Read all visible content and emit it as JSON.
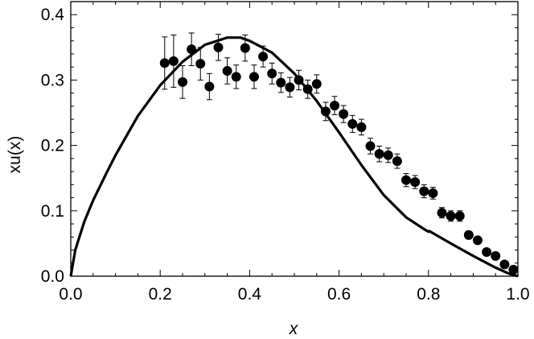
{
  "chart_data": {
    "type": "scatter",
    "xlabel": "x",
    "ylabel": "xu(x)",
    "xlim": [
      0,
      1
    ],
    "ylim": [
      0,
      0.42
    ],
    "x_ticks": [
      0.0,
      0.2,
      0.4,
      0.6,
      0.8,
      1.0
    ],
    "x_tick_labels": [
      "0.0",
      "0.2",
      "0.4",
      "0.6",
      "0.8",
      "1.0"
    ],
    "y_ticks": [
      0.0,
      0.1,
      0.2,
      0.3,
      0.4
    ],
    "y_tick_labels": [
      "0.0",
      "0.1",
      "0.2",
      "0.3",
      "0.4"
    ],
    "grid": false,
    "series": [
      {
        "kind": "line",
        "color": "#000000",
        "points": [
          [
            0.0,
            0.0
          ],
          [
            0.01,
            0.04
          ],
          [
            0.03,
            0.083
          ],
          [
            0.05,
            0.116
          ],
          [
            0.08,
            0.158
          ],
          [
            0.1,
            0.185
          ],
          [
            0.15,
            0.245
          ],
          [
            0.2,
            0.292
          ],
          [
            0.25,
            0.328
          ],
          [
            0.3,
            0.354
          ],
          [
            0.35,
            0.365
          ],
          [
            0.38,
            0.365
          ],
          [
            0.4,
            0.36
          ],
          [
            0.45,
            0.342
          ],
          [
            0.5,
            0.31
          ],
          [
            0.55,
            0.268
          ],
          [
            0.6,
            0.22
          ],
          [
            0.65,
            0.17
          ],
          [
            0.7,
            0.124
          ],
          [
            0.75,
            0.09
          ],
          [
            0.79,
            0.072
          ],
          [
            0.8,
            0.068
          ],
          [
            0.802,
            0.069
          ],
          [
            0.85,
            0.05
          ],
          [
            0.9,
            0.031
          ],
          [
            0.95,
            0.013
          ],
          [
            0.98,
            0.004
          ],
          [
            1.0,
            0.0
          ]
        ]
      },
      {
        "kind": "points",
        "color": "#000000",
        "points": [
          {
            "x": 0.21,
            "y": 0.326,
            "err": 0.04
          },
          {
            "x": 0.23,
            "y": 0.329,
            "err": 0.04
          },
          {
            "x": 0.25,
            "y": 0.297,
            "err": 0.025
          },
          {
            "x": 0.27,
            "y": 0.347,
            "err": 0.025
          },
          {
            "x": 0.29,
            "y": 0.325,
            "err": 0.025
          },
          {
            "x": 0.31,
            "y": 0.29,
            "err": 0.02
          },
          {
            "x": 0.33,
            "y": 0.35,
            "err": 0.02
          },
          {
            "x": 0.35,
            "y": 0.314,
            "err": 0.02
          },
          {
            "x": 0.37,
            "y": 0.305,
            "err": 0.018
          },
          {
            "x": 0.39,
            "y": 0.349,
            "err": 0.02
          },
          {
            "x": 0.41,
            "y": 0.305,
            "err": 0.018
          },
          {
            "x": 0.43,
            "y": 0.336,
            "err": 0.016
          },
          {
            "x": 0.45,
            "y": 0.31,
            "err": 0.016
          },
          {
            "x": 0.47,
            "y": 0.296,
            "err": 0.015
          },
          {
            "x": 0.49,
            "y": 0.289,
            "err": 0.015
          },
          {
            "x": 0.51,
            "y": 0.3,
            "err": 0.015
          },
          {
            "x": 0.53,
            "y": 0.286,
            "err": 0.014
          },
          {
            "x": 0.55,
            "y": 0.294,
            "err": 0.014
          },
          {
            "x": 0.57,
            "y": 0.252,
            "err": 0.014
          },
          {
            "x": 0.59,
            "y": 0.261,
            "err": 0.014
          },
          {
            "x": 0.61,
            "y": 0.248,
            "err": 0.013
          },
          {
            "x": 0.63,
            "y": 0.233,
            "err": 0.013
          },
          {
            "x": 0.65,
            "y": 0.228,
            "err": 0.012
          },
          {
            "x": 0.67,
            "y": 0.199,
            "err": 0.012
          },
          {
            "x": 0.69,
            "y": 0.187,
            "err": 0.012
          },
          {
            "x": 0.71,
            "y": 0.185,
            "err": 0.011
          },
          {
            "x": 0.73,
            "y": 0.176,
            "err": 0.011
          },
          {
            "x": 0.75,
            "y": 0.147,
            "err": 0.01
          },
          {
            "x": 0.77,
            "y": 0.144,
            "err": 0.01
          },
          {
            "x": 0.79,
            "y": 0.13,
            "err": 0.01
          },
          {
            "x": 0.81,
            "y": 0.127,
            "err": 0.009
          },
          {
            "x": 0.83,
            "y": 0.097,
            "err": 0.008
          },
          {
            "x": 0.85,
            "y": 0.092,
            "err": 0.008
          },
          {
            "x": 0.87,
            "y": 0.092,
            "err": 0.008
          },
          {
            "x": 0.89,
            "y": 0.063,
            "err": 0.006
          },
          {
            "x": 0.91,
            "y": 0.055,
            "err": 0.005
          },
          {
            "x": 0.93,
            "y": 0.037,
            "err": 0.004
          },
          {
            "x": 0.95,
            "y": 0.031,
            "err": 0.004
          },
          {
            "x": 0.97,
            "y": 0.018,
            "err": 0.003
          },
          {
            "x": 0.99,
            "y": 0.01,
            "err": 0.003
          }
        ]
      }
    ]
  }
}
